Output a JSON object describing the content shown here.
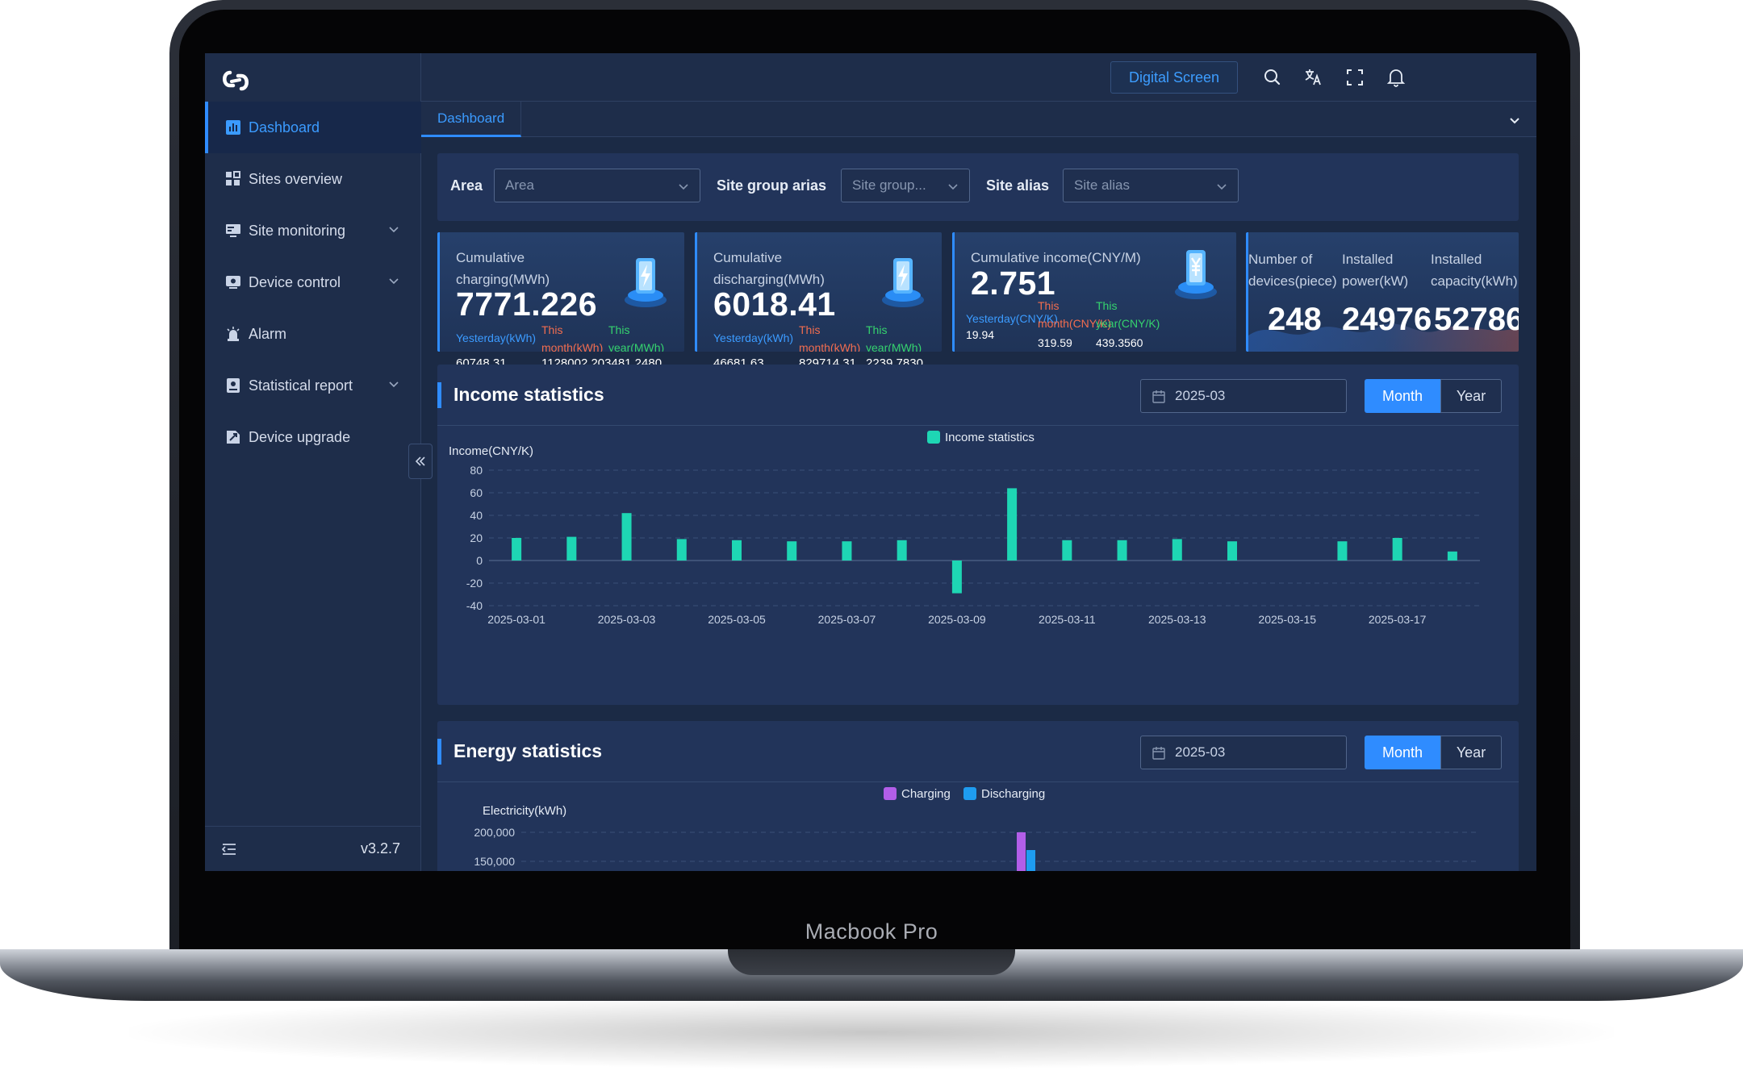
{
  "device": {
    "label": "Macbook Pro"
  },
  "sidebar": {
    "items": [
      {
        "label": "Dashboard",
        "icon": "bar-chart-icon",
        "active": true
      },
      {
        "label": "Sites overview",
        "icon": "grid-icon"
      },
      {
        "label": "Site monitoring",
        "icon": "monitor-icon",
        "expandable": true
      },
      {
        "label": "Device control",
        "icon": "device-icon",
        "expandable": true
      },
      {
        "label": "Alarm",
        "icon": "alarm-icon"
      },
      {
        "label": "Statistical report",
        "icon": "report-icon",
        "expandable": true
      },
      {
        "label": "Device upgrade",
        "icon": "upgrade-icon"
      }
    ],
    "version": "v3.2.7"
  },
  "header": {
    "digital_screen": "Digital Screen"
  },
  "tabs": [
    {
      "label": "Dashboard"
    }
  ],
  "filters": {
    "area_label": "Area",
    "area_placeholder": "Area",
    "site_group_label": "Site group arias",
    "site_group_placeholder": "Site group...",
    "site_alias_label": "Site alias",
    "site_alias_placeholder": "Site alias"
  },
  "cards": {
    "charging": {
      "title_line1": "Cumulative",
      "title_line2": "charging(MWh)",
      "value": "7771.226",
      "yesterday_label": "Yesterday(kWh)",
      "yesterday_value": "60748.31",
      "month_label1": "This",
      "month_label2": "month(kWh)",
      "year_label1": "This",
      "year_label2": "year(MWh)",
      "month_year_value": "1128002.203481.2480"
    },
    "discharging": {
      "title_line1": "Cumulative",
      "title_line2": "discharging(MWh)",
      "value": "6018.41",
      "yesterday_label": "Yesterday(kWh)",
      "yesterday_value": "46681.63",
      "month_label1": "This",
      "month_label2": "month(kWh)",
      "month_value": "829714.31",
      "year_label1": "This",
      "year_label2": "year(MWh)",
      "year_value": "2239.7830"
    },
    "income": {
      "title": "Cumulative income(CNY/M)",
      "value": "2.751",
      "yesterday_label": "Yesterday(CNY/K)",
      "yesterday_value": "19.94",
      "month_label1": "This",
      "month_label2": "month(CNY/K)",
      "month_value": "319.59",
      "year_label1": "This",
      "year_label2": "year(CNY/K)",
      "year_value": "439.3560"
    },
    "devices": {
      "col1_line1": "Number of",
      "col1_line2": "devices(piece)",
      "col1_value": "248",
      "col2_line1": "Installed",
      "col2_line2": "power(kW)",
      "col2_value": "24976",
      "col3_line1": "Installed",
      "col3_line2": "capacity(kWh)",
      "col3_value": "52786"
    }
  },
  "income_panel": {
    "title": "Income statistics",
    "date": "2025-03",
    "month_btn": "Month",
    "year_btn": "Year"
  },
  "energy_panel": {
    "title": "Energy statistics",
    "date": "2025-03",
    "month_btn": "Month",
    "year_btn": "Year"
  },
  "colors": {
    "accent": "#2f8cff",
    "income_bar": "#1ed6b4",
    "charging": "#b25ee8",
    "discharging": "#1e9cf0"
  },
  "chart_data": [
    {
      "type": "bar",
      "title": "",
      "legend": [
        "Income statistics"
      ],
      "legend_position": "top-center",
      "ylabel": "Income(CNY/K)",
      "ylim": [
        -40,
        80
      ],
      "yticks": [
        80,
        60,
        40,
        20,
        0,
        -20,
        -40
      ],
      "grid": true,
      "x_tick_labels": [
        "2025-03-01",
        "2025-03-03",
        "2025-03-05",
        "2025-03-07",
        "2025-03-09",
        "2025-03-11",
        "2025-03-13",
        "2025-03-15",
        "2025-03-17"
      ],
      "series": [
        {
          "name": "Income statistics",
          "values": [
            20,
            21,
            42,
            19,
            18,
            17,
            17,
            18,
            -29,
            64,
            18,
            18,
            19,
            17,
            0,
            17,
            20,
            8
          ]
        }
      ]
    },
    {
      "type": "bar",
      "title": "",
      "legend": [
        "Charging",
        "Discharging"
      ],
      "legend_position": "top-center",
      "ylabel": "Electricity(kWh)",
      "yticks_visible": [
        "200,000",
        "150,000"
      ],
      "grid": true,
      "series": [
        {
          "name": "Charging",
          "values": []
        },
        {
          "name": "Discharging",
          "values": []
        }
      ]
    }
  ]
}
